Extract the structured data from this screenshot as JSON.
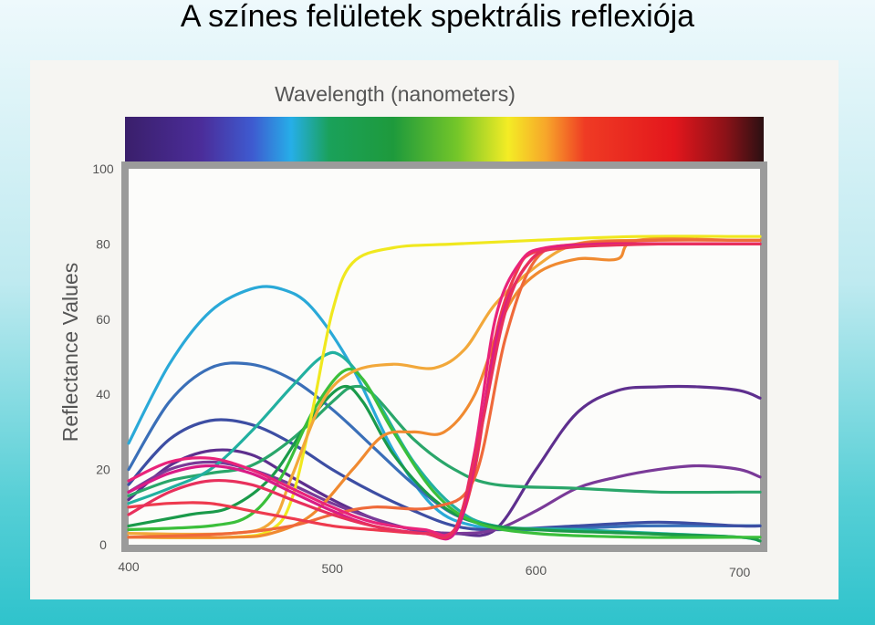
{
  "slide": {
    "title": "A színes felületek spektrális reflexiója"
  },
  "chart_data": {
    "type": "line",
    "title": "Wavelength (nanometers)",
    "xlabel": "",
    "ylabel": "Reflectance Values",
    "xlim": [
      400,
      710
    ],
    "ylim": [
      0,
      100
    ],
    "x_ticks": [
      "400",
      "500",
      "600",
      "700"
    ],
    "y_ticks": [
      "0",
      "20",
      "40",
      "60",
      "80",
      "100"
    ],
    "grid": false,
    "legend": "none",
    "spectrum_band": true,
    "series": [
      {
        "color": "#2aa9d8",
        "points": [
          [
            400,
            27
          ],
          [
            420,
            48
          ],
          [
            440,
            62
          ],
          [
            460,
            68
          ],
          [
            475,
            68
          ],
          [
            490,
            63
          ],
          [
            510,
            47
          ],
          [
            530,
            25
          ],
          [
            550,
            10
          ],
          [
            570,
            5
          ],
          [
            600,
            4
          ],
          [
            650,
            5
          ],
          [
            700,
            5
          ],
          [
            710,
            5
          ]
        ]
      },
      {
        "color": "#3a6fb8",
        "points": [
          [
            400,
            20
          ],
          [
            420,
            38
          ],
          [
            440,
            47
          ],
          [
            460,
            48
          ],
          [
            480,
            44
          ],
          [
            500,
            36
          ],
          [
            520,
            26
          ],
          [
            540,
            16
          ],
          [
            560,
            8
          ],
          [
            580,
            5
          ],
          [
            600,
            4
          ],
          [
            650,
            5
          ],
          [
            700,
            5
          ],
          [
            710,
            5
          ]
        ]
      },
      {
        "color": "#3d4ea3",
        "points": [
          [
            400,
            16
          ],
          [
            420,
            28
          ],
          [
            440,
            33
          ],
          [
            460,
            32
          ],
          [
            480,
            27
          ],
          [
            500,
            20
          ],
          [
            520,
            14
          ],
          [
            540,
            9
          ],
          [
            560,
            5
          ],
          [
            580,
            4
          ],
          [
            620,
            5
          ],
          [
            660,
            6
          ],
          [
            700,
            5
          ],
          [
            710,
            5
          ]
        ]
      },
      {
        "color": "#5e2f8e",
        "points": [
          [
            400,
            12
          ],
          [
            420,
            21
          ],
          [
            440,
            25
          ],
          [
            460,
            24
          ],
          [
            480,
            18
          ],
          [
            500,
            12
          ],
          [
            520,
            7
          ],
          [
            540,
            4
          ],
          [
            560,
            3
          ],
          [
            580,
            4
          ],
          [
            600,
            20
          ],
          [
            620,
            35
          ],
          [
            640,
            41
          ],
          [
            660,
            42
          ],
          [
            680,
            42
          ],
          [
            700,
            41
          ],
          [
            710,
            39
          ]
        ]
      },
      {
        "color": "#7a3a98",
        "points": [
          [
            400,
            14
          ],
          [
            420,
            20
          ],
          [
            440,
            22
          ],
          [
            460,
            20
          ],
          [
            480,
            16
          ],
          [
            500,
            11
          ],
          [
            520,
            7
          ],
          [
            540,
            4
          ],
          [
            560,
            3
          ],
          [
            580,
            4
          ],
          [
            600,
            9
          ],
          [
            620,
            15
          ],
          [
            640,
            18
          ],
          [
            660,
            20
          ],
          [
            680,
            21
          ],
          [
            700,
            20
          ],
          [
            710,
            18
          ]
        ]
      },
      {
        "color": "#2aa66a",
        "points": [
          [
            400,
            13
          ],
          [
            420,
            17
          ],
          [
            440,
            19
          ],
          [
            460,
            21
          ],
          [
            480,
            28
          ],
          [
            500,
            38
          ],
          [
            510,
            42
          ],
          [
            520,
            40
          ],
          [
            540,
            28
          ],
          [
            560,
            20
          ],
          [
            580,
            16
          ],
          [
            620,
            15
          ],
          [
            660,
            14
          ],
          [
            700,
            14
          ],
          [
            710,
            14
          ]
        ]
      },
      {
        "color": "#22b0a0",
        "points": [
          [
            400,
            11
          ],
          [
            420,
            15
          ],
          [
            440,
            20
          ],
          [
            460,
            30
          ],
          [
            480,
            42
          ],
          [
            495,
            50
          ],
          [
            505,
            50
          ],
          [
            520,
            40
          ],
          [
            540,
            22
          ],
          [
            560,
            10
          ],
          [
            580,
            5
          ],
          [
            620,
            4
          ],
          [
            660,
            3
          ],
          [
            700,
            2
          ],
          [
            710,
            1
          ]
        ]
      },
      {
        "color": "#1a9a4a",
        "points": [
          [
            400,
            5
          ],
          [
            430,
            8
          ],
          [
            450,
            10
          ],
          [
            470,
            18
          ],
          [
            490,
            34
          ],
          [
            505,
            42
          ],
          [
            515,
            38
          ],
          [
            530,
            24
          ],
          [
            550,
            12
          ],
          [
            570,
            6
          ],
          [
            600,
            4
          ],
          [
            650,
            3
          ],
          [
            700,
            2
          ],
          [
            710,
            1
          ]
        ]
      },
      {
        "color": "#3bbf3b",
        "points": [
          [
            400,
            4
          ],
          [
            440,
            5
          ],
          [
            460,
            8
          ],
          [
            475,
            18
          ],
          [
            490,
            35
          ],
          [
            505,
            46
          ],
          [
            515,
            44
          ],
          [
            530,
            30
          ],
          [
            550,
            14
          ],
          [
            570,
            6
          ],
          [
            600,
            3
          ],
          [
            650,
            2
          ],
          [
            700,
            2
          ],
          [
            710,
            2
          ]
        ]
      },
      {
        "color": "#f0e81e",
        "points": [
          [
            400,
            2
          ],
          [
            450,
            2
          ],
          [
            470,
            4
          ],
          [
            480,
            12
          ],
          [
            490,
            35
          ],
          [
            500,
            62
          ],
          [
            510,
            75
          ],
          [
            530,
            79
          ],
          [
            560,
            80
          ],
          [
            600,
            81
          ],
          [
            650,
            82
          ],
          [
            700,
            82
          ],
          [
            710,
            82
          ]
        ]
      },
      {
        "color": "#f2a83a",
        "points": [
          [
            400,
            3
          ],
          [
            450,
            3
          ],
          [
            470,
            6
          ],
          [
            480,
            18
          ],
          [
            495,
            38
          ],
          [
            510,
            46
          ],
          [
            530,
            48
          ],
          [
            550,
            47
          ],
          [
            565,
            52
          ],
          [
            580,
            64
          ],
          [
            600,
            74
          ],
          [
            620,
            80
          ],
          [
            650,
            81
          ],
          [
            700,
            81
          ],
          [
            710,
            81
          ]
        ]
      },
      {
        "color": "#f08a30",
        "points": [
          [
            400,
            2
          ],
          [
            450,
            2
          ],
          [
            470,
            3
          ],
          [
            490,
            8
          ],
          [
            510,
            20
          ],
          [
            525,
            29
          ],
          [
            540,
            30
          ],
          [
            555,
            30
          ],
          [
            570,
            40
          ],
          [
            585,
            62
          ],
          [
            600,
            72
          ],
          [
            620,
            76
          ],
          [
            640,
            76
          ],
          [
            650,
            81
          ],
          [
            700,
            81
          ],
          [
            710,
            81
          ]
        ]
      },
      {
        "color": "#ef6a3a",
        "points": [
          [
            400,
            2
          ],
          [
            450,
            3
          ],
          [
            480,
            5
          ],
          [
            500,
            8
          ],
          [
            520,
            10
          ],
          [
            550,
            10
          ],
          [
            570,
            18
          ],
          [
            585,
            55
          ],
          [
            600,
            76
          ],
          [
            620,
            80
          ],
          [
            660,
            81
          ],
          [
            700,
            81
          ],
          [
            710,
            81
          ]
        ]
      },
      {
        "color": "#ee3a4e",
        "points": [
          [
            400,
            10
          ],
          [
            420,
            11
          ],
          [
            440,
            11
          ],
          [
            460,
            9
          ],
          [
            480,
            7
          ],
          [
            500,
            5
          ],
          [
            520,
            4
          ],
          [
            545,
            3
          ],
          [
            560,
            4
          ],
          [
            570,
            20
          ],
          [
            580,
            55
          ],
          [
            590,
            72
          ],
          [
            600,
            78
          ],
          [
            630,
            80
          ],
          [
            660,
            80
          ],
          [
            700,
            80
          ],
          [
            710,
            80
          ]
        ]
      },
      {
        "color": "#e9237a",
        "points": [
          [
            400,
            17
          ],
          [
            420,
            22
          ],
          [
            440,
            23
          ],
          [
            460,
            20
          ],
          [
            480,
            15
          ],
          [
            500,
            10
          ],
          [
            520,
            6
          ],
          [
            545,
            4
          ],
          [
            560,
            4
          ],
          [
            570,
            25
          ],
          [
            580,
            60
          ],
          [
            592,
            75
          ],
          [
            605,
            79
          ],
          [
            640,
            80
          ],
          [
            700,
            80
          ],
          [
            710,
            80
          ]
        ]
      },
      {
        "color": "#d91c86",
        "points": [
          [
            400,
            14
          ],
          [
            420,
            19
          ],
          [
            440,
            21
          ],
          [
            460,
            19
          ],
          [
            480,
            14
          ],
          [
            500,
            9
          ],
          [
            520,
            5
          ],
          [
            545,
            3
          ],
          [
            560,
            3
          ],
          [
            570,
            22
          ],
          [
            582,
            58
          ],
          [
            595,
            74
          ],
          [
            610,
            79
          ],
          [
            650,
            80
          ],
          [
            700,
            80
          ],
          [
            710,
            80
          ]
        ]
      },
      {
        "color": "#e8305c",
        "points": [
          [
            400,
            8
          ],
          [
            420,
            14
          ],
          [
            440,
            17
          ],
          [
            460,
            16
          ],
          [
            480,
            12
          ],
          [
            500,
            8
          ],
          [
            520,
            5
          ],
          [
            545,
            3
          ],
          [
            560,
            4
          ],
          [
            572,
            28
          ],
          [
            585,
            62
          ],
          [
            598,
            76
          ],
          [
            615,
            79
          ],
          [
            660,
            80
          ],
          [
            700,
            80
          ],
          [
            710,
            80
          ]
        ]
      }
    ]
  }
}
